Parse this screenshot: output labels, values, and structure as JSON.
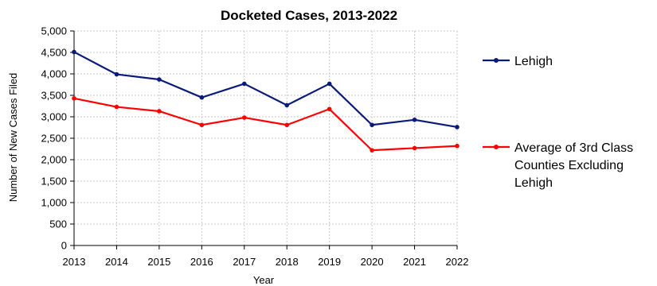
{
  "chart_data": {
    "type": "line",
    "title": "Docketed Cases, 2013-2022",
    "xlabel": "Year",
    "ylabel": "Number of New Cases Filed",
    "x": [
      "2013",
      "2014",
      "2015",
      "2016",
      "2017",
      "2018",
      "2019",
      "2020",
      "2021",
      "2022"
    ],
    "ylim": [
      0,
      5000
    ],
    "yticks": [
      0,
      500,
      1000,
      1500,
      2000,
      2500,
      3000,
      3500,
      4000,
      4500,
      5000
    ],
    "ytick_labels": [
      "0",
      "500",
      "1,000",
      "1,500",
      "2,000",
      "2,500",
      "3,000",
      "3,500",
      "4,000",
      "4,500",
      "5,000"
    ],
    "grid": true,
    "legend_position": "right",
    "series": [
      {
        "name": "Lehigh",
        "legend_lines": [
          "Lehigh"
        ],
        "color": "#0a1a7a",
        "values": [
          4510,
          3990,
          3870,
          3450,
          3770,
          3270,
          3770,
          2810,
          2930,
          2760
        ]
      },
      {
        "name": "Average of 3rd Class Counties Excluding Lehigh",
        "legend_lines": [
          "Average of 3rd Class",
          "Counties Excluding",
          "Lehigh"
        ],
        "color": "#ff0000",
        "values": [
          3430,
          3230,
          3130,
          2810,
          2980,
          2810,
          3180,
          2220,
          2270,
          2320
        ]
      }
    ]
  }
}
